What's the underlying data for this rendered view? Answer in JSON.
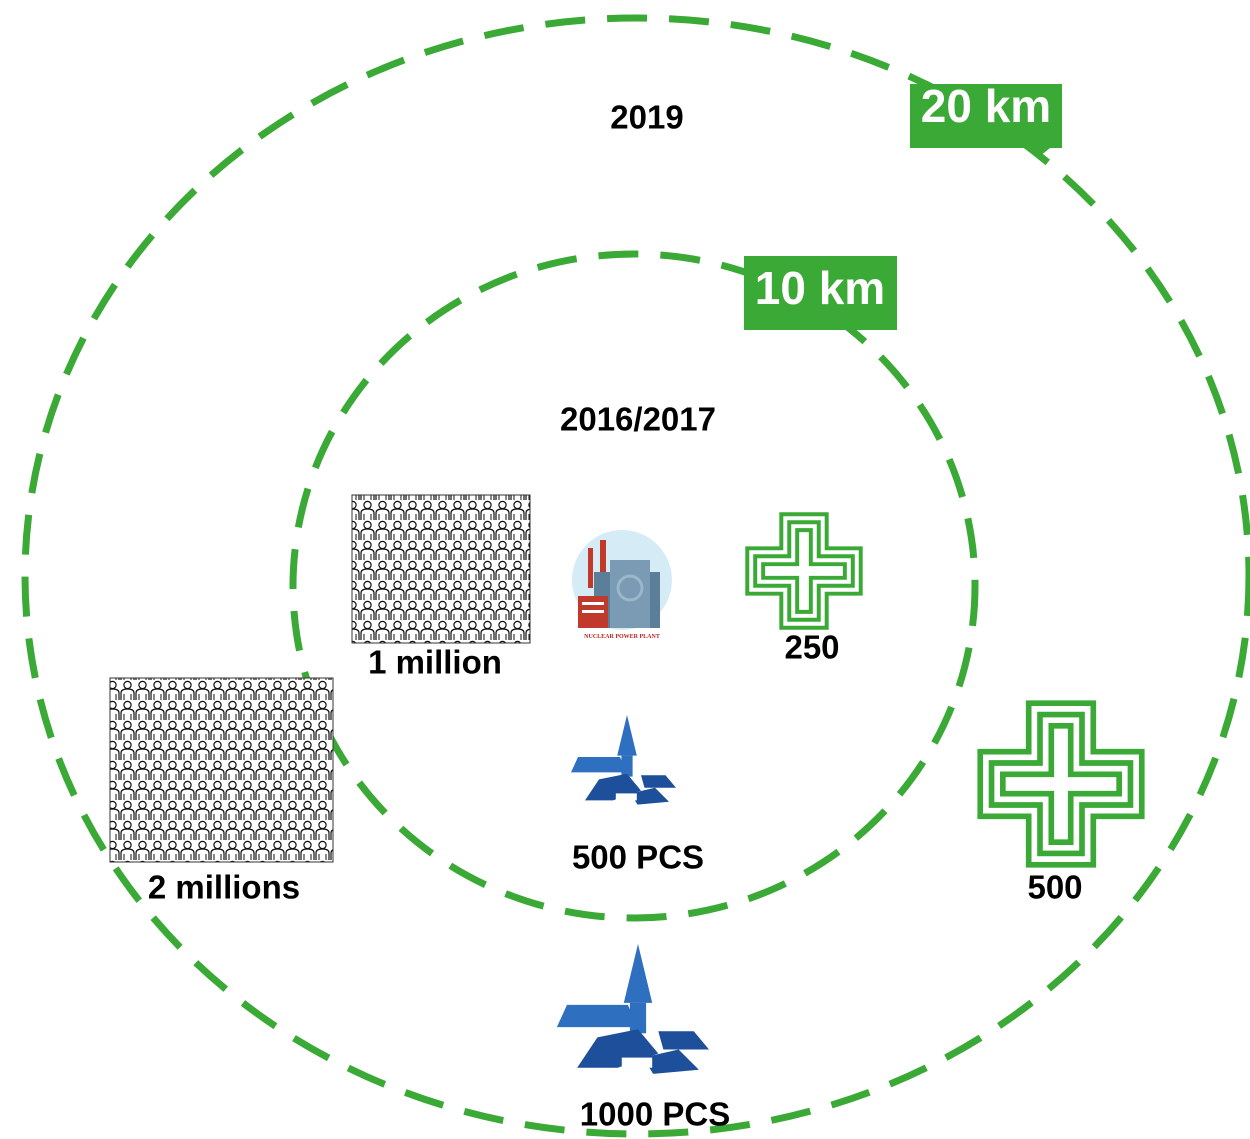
{
  "zones": [
    {
      "radius": "20 km",
      "year": "2019",
      "population": "2 millions",
      "pharmacies": "500",
      "packs": "1000 PCS"
    },
    {
      "radius": "10 km",
      "year": "2016/2017",
      "population": "1 million",
      "pharmacies": "250",
      "packs": "500 PCS"
    }
  ],
  "plant_label": "NUCLEAR POWER PLANT"
}
